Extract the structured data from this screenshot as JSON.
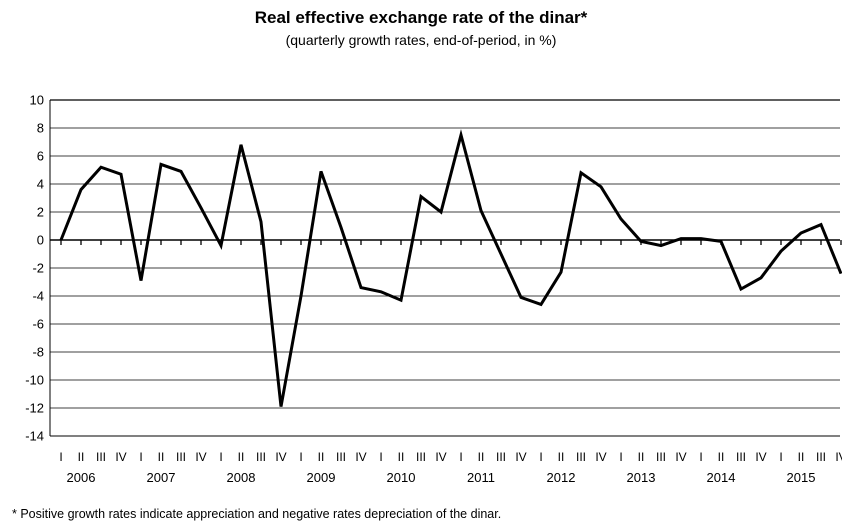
{
  "chart_data": {
    "type": "line",
    "title": "Real effective exchange rate of the dinar*",
    "subtitle": "(quarterly growth rates, end-of-period, in %)",
    "footnote": "* Positive growth rates indicate appreciation and negative rates depreciation of the dinar.",
    "ylim": [
      -14,
      10
    ],
    "yticks": [
      10,
      8,
      6,
      4,
      2,
      0,
      -2,
      -4,
      -6,
      -8,
      -10,
      -12,
      -14
    ],
    "grid": true,
    "legend": "none",
    "quarter_labels": [
      "I",
      "II",
      "III",
      "IV"
    ],
    "years": [
      "2006",
      "2007",
      "2008",
      "2009",
      "2010",
      "2011",
      "2012",
      "2013",
      "2014",
      "2015"
    ],
    "series": [
      {
        "color": "#000000",
        "values": [
          0.0,
          3.6,
          5.2,
          4.7,
          -2.9,
          5.4,
          4.9,
          2.3,
          -0.4,
          6.8,
          1.3,
          -11.9,
          -4.0,
          4.9,
          0.9,
          -3.4,
          -3.7,
          -4.3,
          3.1,
          2.0,
          7.5,
          2.1,
          -1.0,
          -4.1,
          -4.6,
          -2.3,
          4.8,
          3.8,
          1.5,
          -0.1,
          -0.4,
          0.1,
          0.1,
          -0.1,
          -3.5,
          -2.7,
          -0.8,
          0.5,
          1.1,
          -2.4
        ]
      }
    ]
  }
}
